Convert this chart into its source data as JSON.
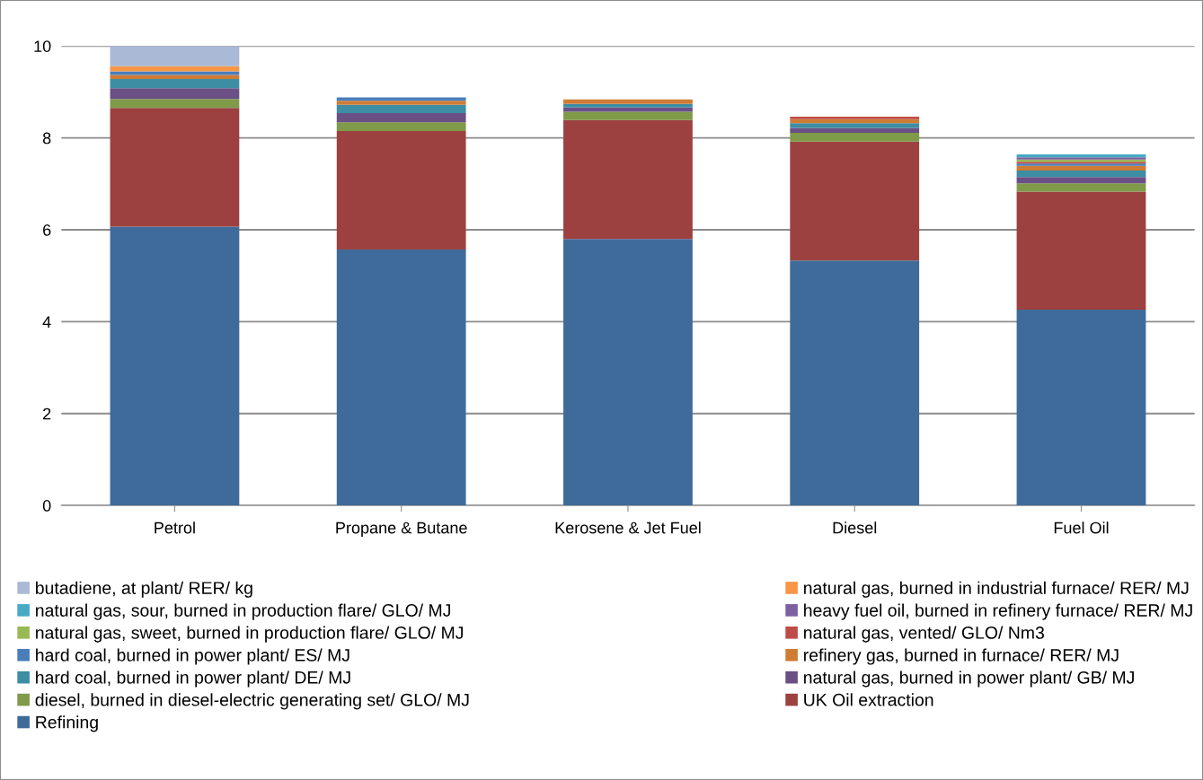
{
  "chart_data": {
    "type": "bar",
    "stacked": true,
    "categories": [
      "Petrol",
      "Propane & Butane",
      "Kerosene & Jet Fuel",
      "Diesel",
      "Fuel Oil"
    ],
    "ylim": [
      0,
      10
    ],
    "yticks": [
      0,
      2,
      4,
      6,
      8,
      10
    ],
    "grid": "y",
    "legend": "bottom",
    "series": [
      {
        "name": "Refining",
        "color": "#3f6b9b",
        "values": [
          6.07,
          5.57,
          5.8,
          5.33,
          4.26
        ]
      },
      {
        "name": "UK Oil extraction",
        "color": "#9c4140",
        "values": [
          2.58,
          2.58,
          2.59,
          2.59,
          2.57
        ]
      },
      {
        "name": "diesel, burned in diesel-electric generating set/ GLO/ MJ",
        "color": "#7f9a48",
        "values": [
          0.2,
          0.19,
          0.18,
          0.19,
          0.18
        ]
      },
      {
        "name": "natural gas, burned in power plant/ GB/ MJ",
        "color": "#6a5085",
        "values": [
          0.23,
          0.2,
          0.09,
          0.11,
          0.14
        ]
      },
      {
        "name": "hard coal, burned in power plant/ DE/ MJ",
        "color": "#3d8da3",
        "values": [
          0.2,
          0.18,
          0.08,
          0.1,
          0.14
        ]
      },
      {
        "name": "refinery gas, burned in furnace/ RER/ MJ",
        "color": "#cf7c34",
        "values": [
          0.09,
          0.09,
          0.1,
          0.09,
          0.1
        ]
      },
      {
        "name": "hard coal, burned in power plant/ ES/ MJ",
        "color": "#4a7ebb",
        "values": [
          0.08,
          0.07,
          0,
          0,
          0.05
        ]
      },
      {
        "name": "natural gas, vented/ GLO/ Nm3",
        "color": "#be4b48",
        "values": [
          0,
          0,
          0,
          0.05,
          0.04
        ]
      },
      {
        "name": "natural gas, sweet, burned in production flare/ GLO/ MJ",
        "color": "#98b954",
        "values": [
          0,
          0,
          0,
          0,
          0.05
        ]
      },
      {
        "name": "heavy fuel oil, burned in refinery furnace/ RER/ MJ",
        "color": "#7d60a0",
        "values": [
          0,
          0,
          0,
          0,
          0.05
        ]
      },
      {
        "name": "natural gas, sour, burned in production flare/ GLO/ MJ",
        "color": "#46aac5",
        "values": [
          0,
          0,
          0,
          0,
          0.06
        ]
      },
      {
        "name": "natural gas, burned in industrial furnace/ RER/ MJ",
        "color": "#f79646",
        "values": [
          0.11,
          0,
          0,
          0,
          0
        ]
      },
      {
        "name": "butadiene, at plant/ RER/ kg",
        "color": "#aab9d6",
        "values": [
          0.44,
          0,
          0,
          0,
          0
        ]
      }
    ]
  }
}
